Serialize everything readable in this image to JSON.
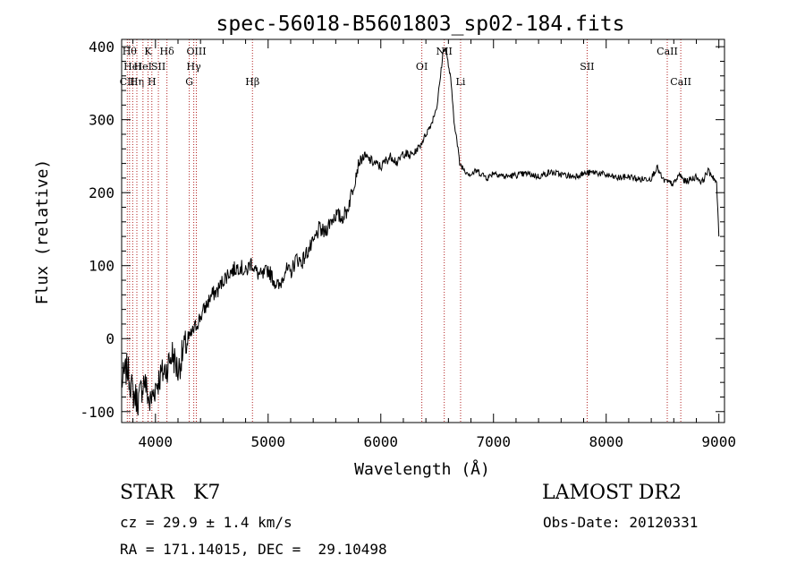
{
  "chart_data": {
    "type": "line",
    "title": "spec-56018-B5601803_sp02-184.fits",
    "xlabel": "Wavelength (Å)",
    "ylabel": "Flux (relative)",
    "xlim": [
      3700,
      9050
    ],
    "ylim": [
      -115,
      410
    ],
    "xticks": [
      4000,
      5000,
      6000,
      7000,
      8000,
      9000
    ],
    "yticks": [
      -100,
      0,
      100,
      200,
      300,
      400
    ],
    "grid": false,
    "line_color": "#000000",
    "marker_color": "#b22222",
    "series": [
      {
        "x": [
          3700,
          3750,
          3800,
          3850,
          3900,
          3950,
          4000,
          4050,
          4100,
          4150,
          4200,
          4250,
          4300,
          4350,
          4400,
          4450,
          4500,
          4550,
          4600,
          4650,
          4700,
          4750,
          4800,
          4850,
          4900,
          4950,
          5000,
          5050,
          5100,
          5150,
          5200,
          5250,
          5300,
          5350,
          5400,
          5450,
          5500,
          5550,
          5600,
          5650,
          5700,
          5750,
          5800,
          5850,
          5900,
          5950,
          6000,
          6050,
          6100,
          6150,
          6200,
          6250,
          6300,
          6350,
          6400,
          6450,
          6500,
          6530,
          6550,
          6570,
          6600,
          6620,
          6650,
          6680,
          6700,
          6750,
          6800,
          6850,
          6900,
          6950,
          7000,
          7100,
          7200,
          7300,
          7400,
          7500,
          7600,
          7700,
          7800,
          7900,
          8000,
          8100,
          8200,
          8300,
          8400,
          8450,
          8500,
          8550,
          8600,
          8650,
          8700,
          8750,
          8800,
          8850,
          8900,
          8950,
          8980,
          9000
        ],
        "y": [
          -60,
          -40,
          -75,
          -85,
          -55,
          -90,
          -65,
          -50,
          -40,
          -20,
          -45,
          -15,
          0,
          15,
          30,
          45,
          60,
          65,
          80,
          90,
          95,
          100,
          90,
          105,
          90,
          85,
          95,
          80,
          70,
          95,
          90,
          110,
          105,
          120,
          130,
          150,
          145,
          160,
          170,
          165,
          175,
          205,
          240,
          250,
          245,
          240,
          235,
          245,
          250,
          240,
          255,
          250,
          255,
          265,
          280,
          295,
          320,
          360,
          390,
          400,
          375,
          355,
          300,
          265,
          240,
          230,
          225,
          230,
          225,
          220,
          228,
          222,
          224,
          226,
          222,
          228,
          225,
          222,
          226,
          228,
          224,
          220,
          222,
          218,
          220,
          235,
          218,
          214,
          212,
          225,
          215,
          218,
          222,
          214,
          230,
          222,
          212,
          140
        ]
      }
    ],
    "lines": [
      {
        "x": 3750,
        "label": "CII",
        "row": 3
      },
      {
        "x": 3770,
        "label": "Hθ",
        "row": 1
      },
      {
        "x": 3798,
        "label": "HeI",
        "row": 2
      },
      {
        "x": 3835,
        "label": "Hη",
        "row": 3
      },
      {
        "x": 3889,
        "label": "HeI",
        "row": 2
      },
      {
        "x": 3934,
        "label": "K",
        "row": 1
      },
      {
        "x": 3968,
        "label": "H",
        "row": 3
      },
      {
        "x": 4026,
        "label": "SII",
        "row": 2
      },
      {
        "x": 4102,
        "label": "Hδ",
        "row": 1
      },
      {
        "x": 4300,
        "label": "G",
        "row": 3
      },
      {
        "x": 4340,
        "label": "Hγ",
        "row": 2
      },
      {
        "x": 4363,
        "label": "OIII",
        "row": 1
      },
      {
        "x": 4861,
        "label": "Hβ",
        "row": 3
      },
      {
        "x": 6364,
        "label": "OI",
        "row": 2
      },
      {
        "x": 6563,
        "label": "NII",
        "row": 1
      },
      {
        "x": 6708,
        "label": "Li",
        "row": 3
      },
      {
        "x": 7831,
        "label": "SII",
        "row": 2
      },
      {
        "x": 8542,
        "label": "CaII",
        "row": 1
      },
      {
        "x": 8662,
        "label": "CaII",
        "row": 3
      }
    ]
  },
  "info": {
    "class_line": "STAR   K7",
    "survey": "LAMOST DR2",
    "cz_line": "cz = 29.9 ± 1.4 km/s",
    "obs_date": "Obs-Date: 20120331",
    "radec_line": "RA = 171.14015, DEC =  29.10498"
  }
}
